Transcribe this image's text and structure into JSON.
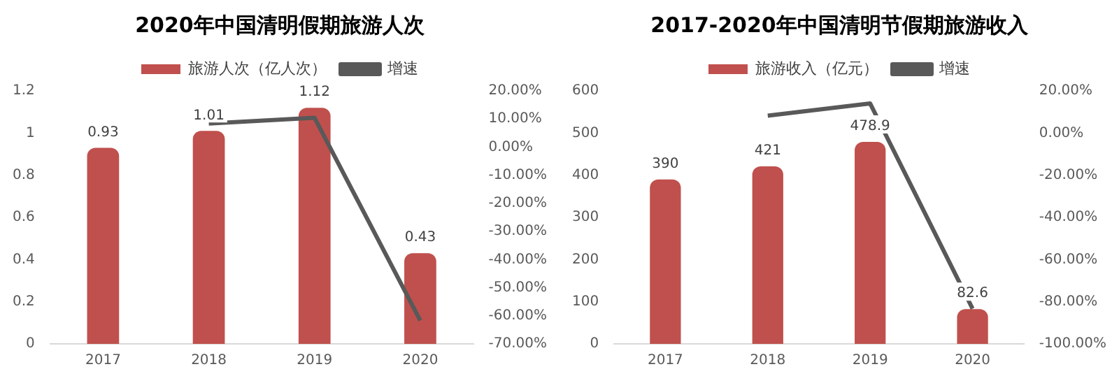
{
  "chart_data": [
    {
      "type": "bar",
      "title": "2020年中国清明假期旅游人次",
      "categories": [
        "2017",
        "2018",
        "2019",
        "2020"
      ],
      "series": [
        {
          "name": "旅游人次（亿人次）",
          "color": "#c0504d",
          "values": [
            0.93,
            1.01,
            1.12,
            0.43
          ],
          "value_labels": [
            "0.93",
            "1.01",
            "1.12",
            "0.43"
          ]
        },
        {
          "name": "增速",
          "type": "line",
          "axis": "y2",
          "color": "#595959",
          "values": [
            null,
            8.4,
            10.4,
            -61.7
          ]
        }
      ],
      "ylim": [
        0,
        1.2
      ],
      "yticks": [
        0,
        0.2,
        0.4,
        0.6,
        0.8,
        1,
        1.2
      ],
      "y2lim": [
        -70,
        20
      ],
      "y2ticks": [
        {
          "value": -70,
          "label": "-70.00%"
        },
        {
          "value": -60,
          "label": "-60.00%"
        },
        {
          "value": -50,
          "label": "-50.00%"
        },
        {
          "value": -40,
          "label": "-40.00%"
        },
        {
          "value": -30,
          "label": "-30.00%"
        },
        {
          "value": -20,
          "label": "-20.00%"
        },
        {
          "value": -10,
          "label": "-10.00%"
        },
        {
          "value": 0,
          "label": "0.00%"
        },
        {
          "value": 10,
          "label": "10.00%"
        },
        {
          "value": 20,
          "label": "20.00%"
        }
      ],
      "legend": "top",
      "grid": false,
      "marker": "none"
    },
    {
      "type": "bar",
      "title": "2017-2020年中国清明节假期旅游收入",
      "categories": [
        "2017",
        "2018",
        "2019",
        "2020"
      ],
      "series": [
        {
          "name": "旅游收入（亿元）",
          "color": "#c0504d",
          "values": [
            390,
            421,
            478.9,
            82.6
          ],
          "value_labels": [
            "390",
            "421",
            "478.9",
            "82.6"
          ]
        },
        {
          "name": "增速",
          "type": "line",
          "axis": "y2",
          "color": "#595959",
          "values": [
            null,
            8.2,
            14,
            -83.3
          ]
        }
      ],
      "ylim": [
        0,
        600
      ],
      "yticks": [
        0,
        100,
        200,
        300,
        400,
        500,
        600
      ],
      "y2lim": [
        -100,
        20
      ],
      "y2ticks": [
        {
          "value": -100,
          "label": "-100.00%"
        },
        {
          "value": -80,
          "label": "-80.00%"
        },
        {
          "value": -60,
          "label": "-60.00%"
        },
        {
          "value": -40,
          "label": "-40.00%"
        },
        {
          "value": -20,
          "label": "-20.00%"
        },
        {
          "value": 0,
          "label": "0.00%"
        },
        {
          "value": 20,
          "label": "20.00%"
        }
      ],
      "legend": "top",
      "grid": false,
      "marker": "none"
    }
  ]
}
